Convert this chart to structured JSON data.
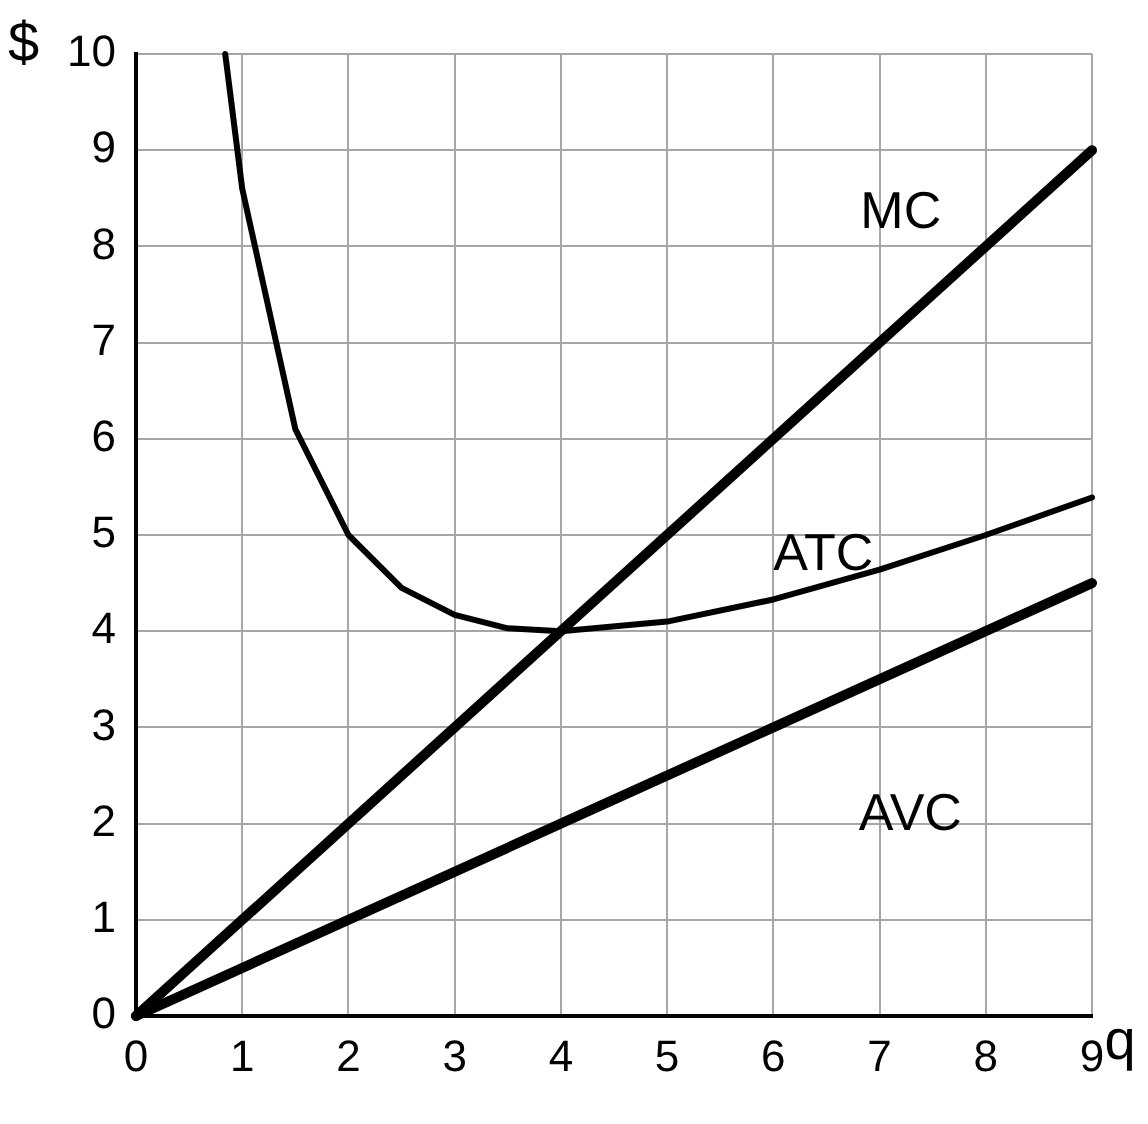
{
  "chart_data": {
    "type": "line",
    "xlabel": "q",
    "ylabel": "$",
    "series": [
      {
        "name": "MC",
        "color": "#000000",
        "x": [
          0,
          9
        ],
        "values": [
          0,
          9
        ]
      },
      {
        "name": "ATC",
        "color": "#000000",
        "x": [
          0.84,
          1,
          1.5,
          2,
          2.5,
          3,
          3.5,
          4,
          5,
          6,
          7,
          8,
          9
        ],
        "values": [
          10,
          8.6,
          6.1,
          5.0,
          4.45,
          4.17,
          4.03,
          4.0,
          4.1,
          4.33,
          4.64,
          5.0,
          5.39
        ]
      },
      {
        "name": "AVC",
        "color": "#000000",
        "x": [
          0,
          9
        ],
        "values": [
          0,
          4.5
        ]
      }
    ],
    "xlim": [
      0,
      9
    ],
    "xticks": [
      0,
      1,
      2,
      3,
      4,
      5,
      6,
      7,
      8,
      9
    ],
    "ylim": [
      0,
      10
    ],
    "yticks": [
      0,
      1,
      2,
      3,
      4,
      5,
      6,
      7,
      8,
      9,
      10
    ],
    "grid": true,
    "legend": false,
    "marker": "none",
    "line_style": "solid"
  }
}
